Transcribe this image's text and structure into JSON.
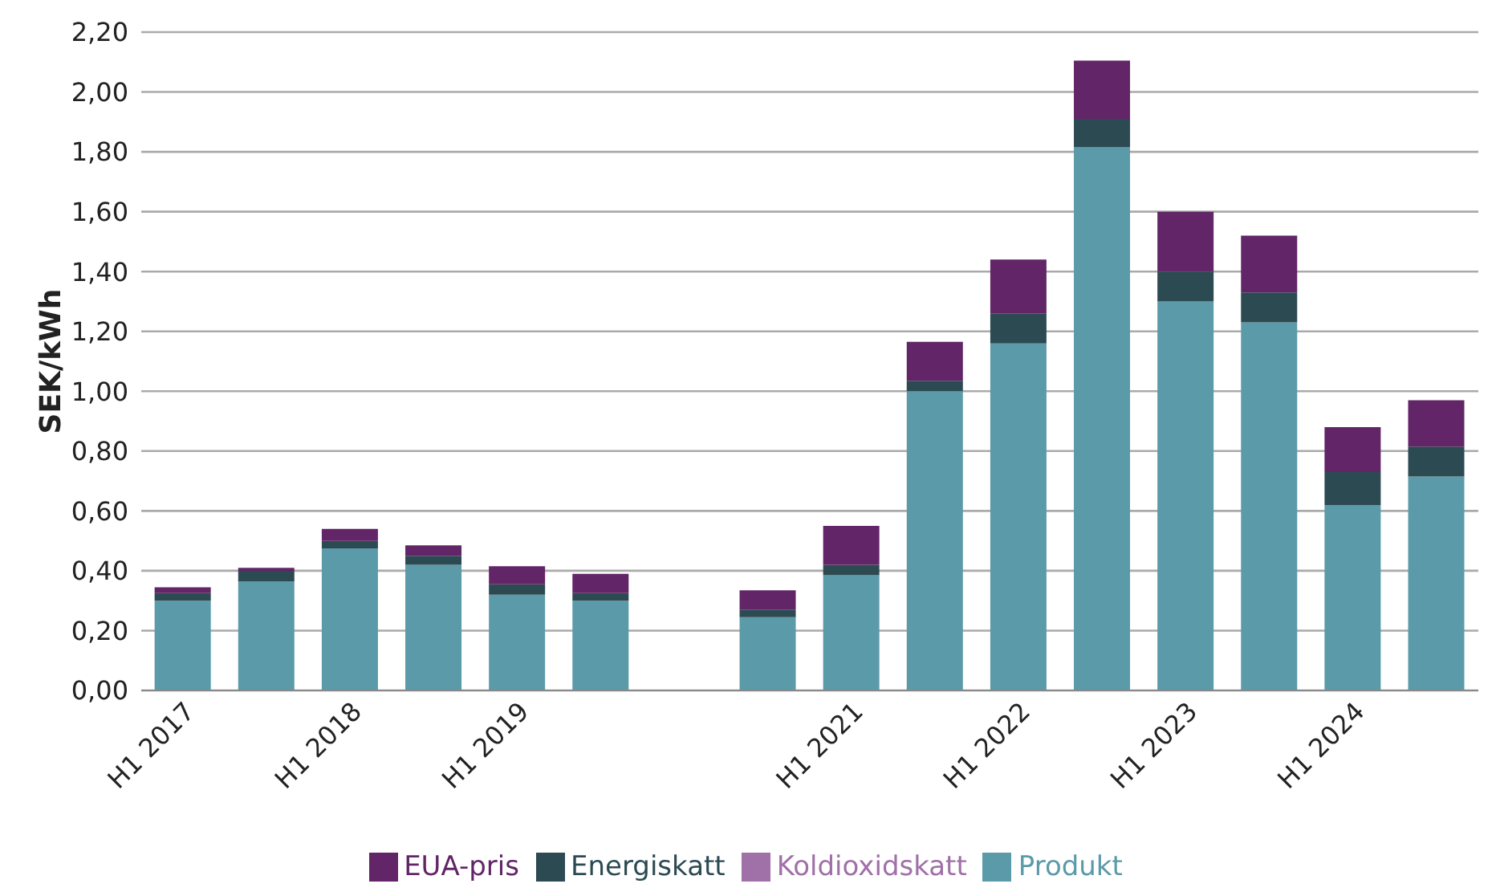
{
  "chart_data": {
    "type": "bar",
    "stacked": true,
    "ylabel": "SEK/kWh",
    "categories": [
      "H1 2017",
      null,
      "H1 2018",
      null,
      "H1 2019",
      null,
      null,
      null,
      "H1 2021",
      null,
      "H1 2022",
      null,
      "H1 2023",
      null,
      "H1 2024",
      null
    ],
    "series": [
      {
        "name": "Produkt",
        "color": "#5b9aa9",
        "values": [
          0.3,
          0.365,
          0.475,
          0.42,
          0.32,
          0.3,
          null,
          0.245,
          0.385,
          1.0,
          1.16,
          1.815,
          1.3,
          1.23,
          0.62,
          0.715
        ]
      },
      {
        "name": "Energiskatt",
        "color": "#2c4a52",
        "values": [
          0.025,
          0.035,
          0.025,
          0.03,
          0.035,
          0.025,
          null,
          0.025,
          0.035,
          0.035,
          0.1,
          0.095,
          0.1,
          0.1,
          0.11,
          0.1
        ]
      },
      {
        "name": "Koldioxidskatt",
        "color": "#a070a8",
        "values": [
          0,
          0,
          0,
          0,
          0,
          0,
          null,
          0,
          0,
          0,
          0,
          0,
          0,
          0,
          0,
          0
        ]
      },
      {
        "name": "EUA-pris",
        "color": "#622567",
        "values": [
          0.02,
          0.01,
          0.04,
          0.035,
          0.06,
          0.065,
          null,
          0.065,
          0.13,
          0.13,
          0.18,
          0.195,
          0.2,
          0.19,
          0.15,
          0.155
        ]
      }
    ],
    "ylim": [
      0,
      2.2
    ],
    "yticks": [
      {
        "value": 0,
        "label": "0,00"
      },
      {
        "value": 0.2,
        "label": "0,20"
      },
      {
        "value": 0.4,
        "label": "0,40"
      },
      {
        "value": 0.6,
        "label": "0,60"
      },
      {
        "value": 0.8,
        "label": "0,80"
      },
      {
        "value": 1,
        "label": "1,00"
      },
      {
        "value": 1.2,
        "label": "1,20"
      },
      {
        "value": 1.4,
        "label": "1,40"
      },
      {
        "value": 1.6,
        "label": "1,60"
      },
      {
        "value": 1.8,
        "label": "1,80"
      },
      {
        "value": 2,
        "label": "2,00"
      },
      {
        "value": 2.2,
        "label": "2,20"
      }
    ],
    "grid": "y",
    "legend": "bottom"
  }
}
